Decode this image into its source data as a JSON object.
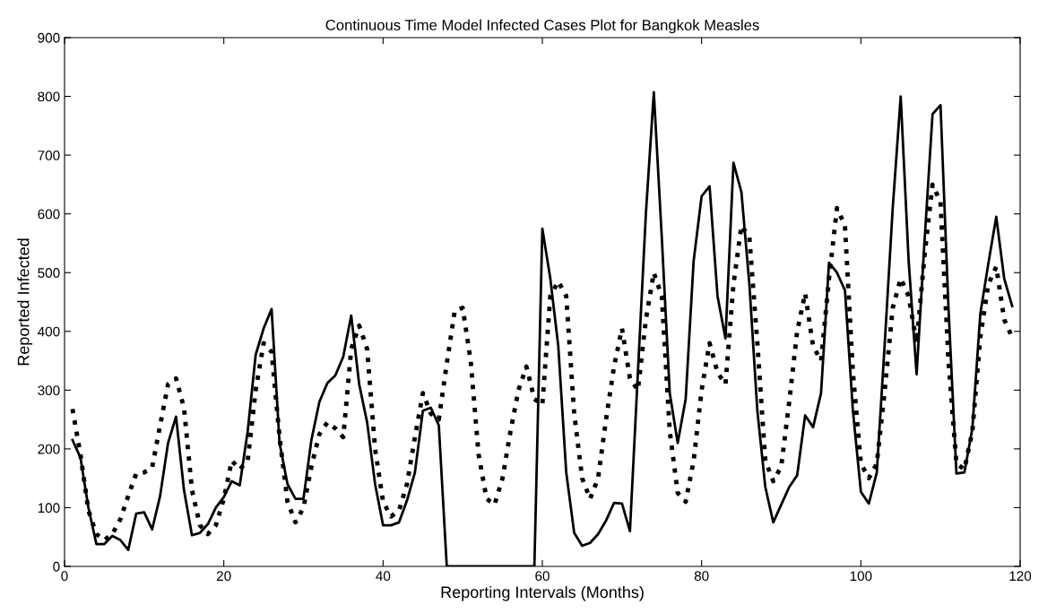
{
  "chart_data": {
    "type": "line",
    "title": "Continuous Time Model Infected Cases Plot for Bangkok Measles",
    "xlabel": "Reporting Intervals (Months)",
    "ylabel": "Reported Infected",
    "x": [
      1,
      2,
      3,
      4,
      5,
      6,
      7,
      8,
      9,
      10,
      11,
      12,
      13,
      14,
      15,
      16,
      17,
      18,
      19,
      20,
      21,
      22,
      23,
      24,
      25,
      26,
      27,
      28,
      29,
      30,
      31,
      32,
      33,
      34,
      35,
      36,
      37,
      38,
      39,
      40,
      41,
      42,
      43,
      44,
      45,
      46,
      47,
      48,
      49,
      50,
      51,
      52,
      53,
      54,
      55,
      56,
      57,
      58,
      59,
      60,
      61,
      62,
      63,
      64,
      65,
      66,
      67,
      68,
      69,
      70,
      71,
      72,
      73,
      74,
      75,
      76,
      77,
      78,
      79,
      80,
      81,
      82,
      83,
      84,
      85,
      86,
      87,
      88,
      89,
      90,
      91,
      92,
      93,
      94,
      95,
      96,
      97,
      98,
      99,
      100,
      101,
      102,
      103,
      104,
      105,
      106,
      107,
      108,
      109,
      110,
      111,
      112,
      113,
      114,
      115,
      116,
      117,
      118,
      119
    ],
    "series": [
      {
        "color": "#000000",
        "line_style": "solid",
        "values": [
          215,
          185,
          100,
          38,
          38,
          52,
          45,
          28,
          90,
          92,
          63,
          120,
          210,
          255,
          130,
          53,
          57,
          72,
          100,
          118,
          145,
          138,
          230,
          360,
          405,
          438,
          210,
          140,
          115,
          115,
          215,
          280,
          312,
          325,
          357,
          427,
          310,
          245,
          140,
          70,
          70,
          75,
          112,
          160,
          265,
          270,
          240,
          0,
          0,
          0,
          0,
          0,
          0,
          0,
          0,
          0,
          0,
          0,
          0,
          575,
          490,
          375,
          160,
          57,
          35,
          40,
          55,
          78,
          108,
          107,
          60,
          330,
          600,
          807,
          560,
          295,
          210,
          285,
          520,
          630,
          647,
          460,
          388,
          687,
          637,
          480,
          265,
          135,
          75,
          105,
          135,
          155,
          257,
          237,
          295,
          517,
          500,
          470,
          265,
          127,
          107,
          160,
          380,
          610,
          800,
          520,
          327,
          555,
          770,
          785,
          440,
          158,
          160,
          235,
          430,
          515,
          595,
          490,
          443
        ]
      },
      {
        "color": "#000000",
        "line_style": "dotted",
        "values": [
          268,
          190,
          95,
          55,
          45,
          55,
          80,
          120,
          158,
          160,
          168,
          240,
          310,
          320,
          270,
          130,
          70,
          55,
          70,
          115,
          180,
          165,
          180,
          300,
          380,
          365,
          220,
          110,
          75,
          100,
          170,
          225,
          245,
          235,
          220,
          370,
          410,
          370,
          200,
          110,
          85,
          95,
          140,
          220,
          295,
          260,
          250,
          345,
          435,
          440,
          350,
          190,
          115,
          105,
          150,
          230,
          300,
          340,
          285,
          275,
          460,
          485,
          460,
          260,
          150,
          115,
          150,
          250,
          340,
          405,
          320,
          300,
          420,
          500,
          460,
          230,
          125,
          110,
          180,
          300,
          380,
          330,
          310,
          480,
          580,
          560,
          380,
          180,
          145,
          170,
          280,
          400,
          465,
          375,
          350,
          490,
          610,
          580,
          330,
          175,
          150,
          175,
          300,
          440,
          490,
          460,
          380,
          530,
          650,
          620,
          350,
          175,
          165,
          230,
          390,
          480,
          510,
          420,
          390
        ]
      }
    ],
    "xlim": [
      0,
      120
    ],
    "xticks": [
      0,
      20,
      40,
      60,
      80,
      100,
      120
    ],
    "ylim": [
      0,
      900
    ],
    "yticks": [
      0,
      100,
      200,
      300,
      400,
      500,
      600,
      700,
      800,
      900
    ],
    "grid": false,
    "legend": false
  }
}
